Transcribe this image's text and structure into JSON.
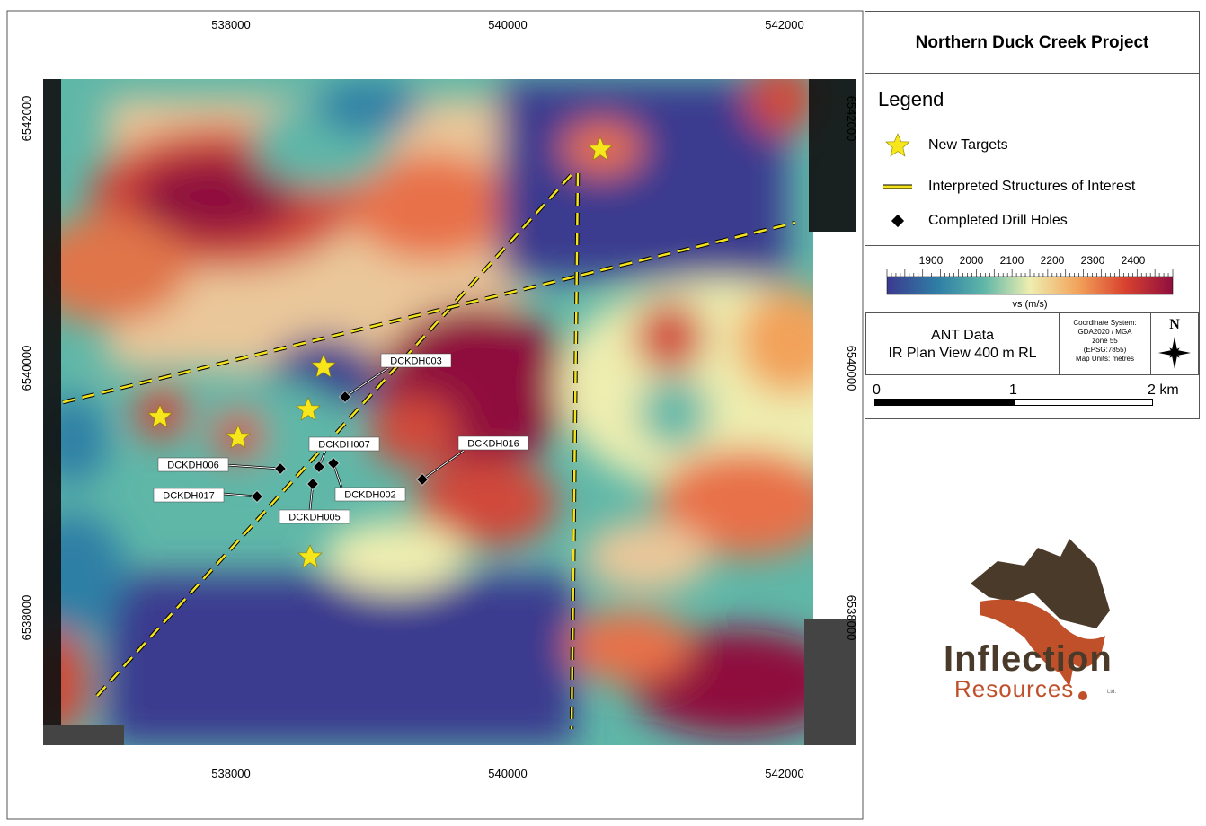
{
  "title": "Northern Duck Creek Project",
  "legend": {
    "heading": "Legend",
    "items": [
      {
        "label": "New Targets",
        "icon": "star-icon"
      },
      {
        "label": "Interpreted Structures of Interest",
        "icon": "dashed-line-icon"
      },
      {
        "label": "Completed Drill Holes",
        "icon": "diamond-icon"
      }
    ]
  },
  "colorbar": {
    "ticks": [
      "1900",
      "2000",
      "2100",
      "2200",
      "2300",
      "2400"
    ],
    "unit": "vs (m/s)"
  },
  "info": {
    "line1": "ANT Data",
    "line2": "IR Plan View 400 m RL",
    "coord_system": [
      "Coordinate System:",
      "GDA2020 / MGA",
      "zone 55",
      "(EPSG:7855)",
      "Map Units: metres"
    ],
    "north": "N"
  },
  "scale": {
    "labels": [
      "0",
      "1",
      "2 km"
    ]
  },
  "axes": {
    "x_ticks": [
      "538000",
      "540000",
      "542000"
    ],
    "y_ticks": [
      "6542000",
      "6540000",
      "6538000"
    ]
  },
  "drill_holes": [
    {
      "id": "DCKDH003"
    },
    {
      "id": "DCKDH007"
    },
    {
      "id": "DCKDH016"
    },
    {
      "id": "DCKDH006"
    },
    {
      "id": "DCKDH017"
    },
    {
      "id": "DCKDH002"
    },
    {
      "id": "DCKDH005"
    }
  ],
  "logo": {
    "word1": "Inflection",
    "word2": "Resources",
    "suffix": "Ltd."
  },
  "colors": {
    "star": "#f7e61b",
    "structure_line": "#f2e31e",
    "ramp": [
      "#3b3a8f",
      "#2f7fa6",
      "#5fb7a8",
      "#eeeeb0",
      "#f2a25a",
      "#d9432f",
      "#8f0e3e"
    ]
  }
}
